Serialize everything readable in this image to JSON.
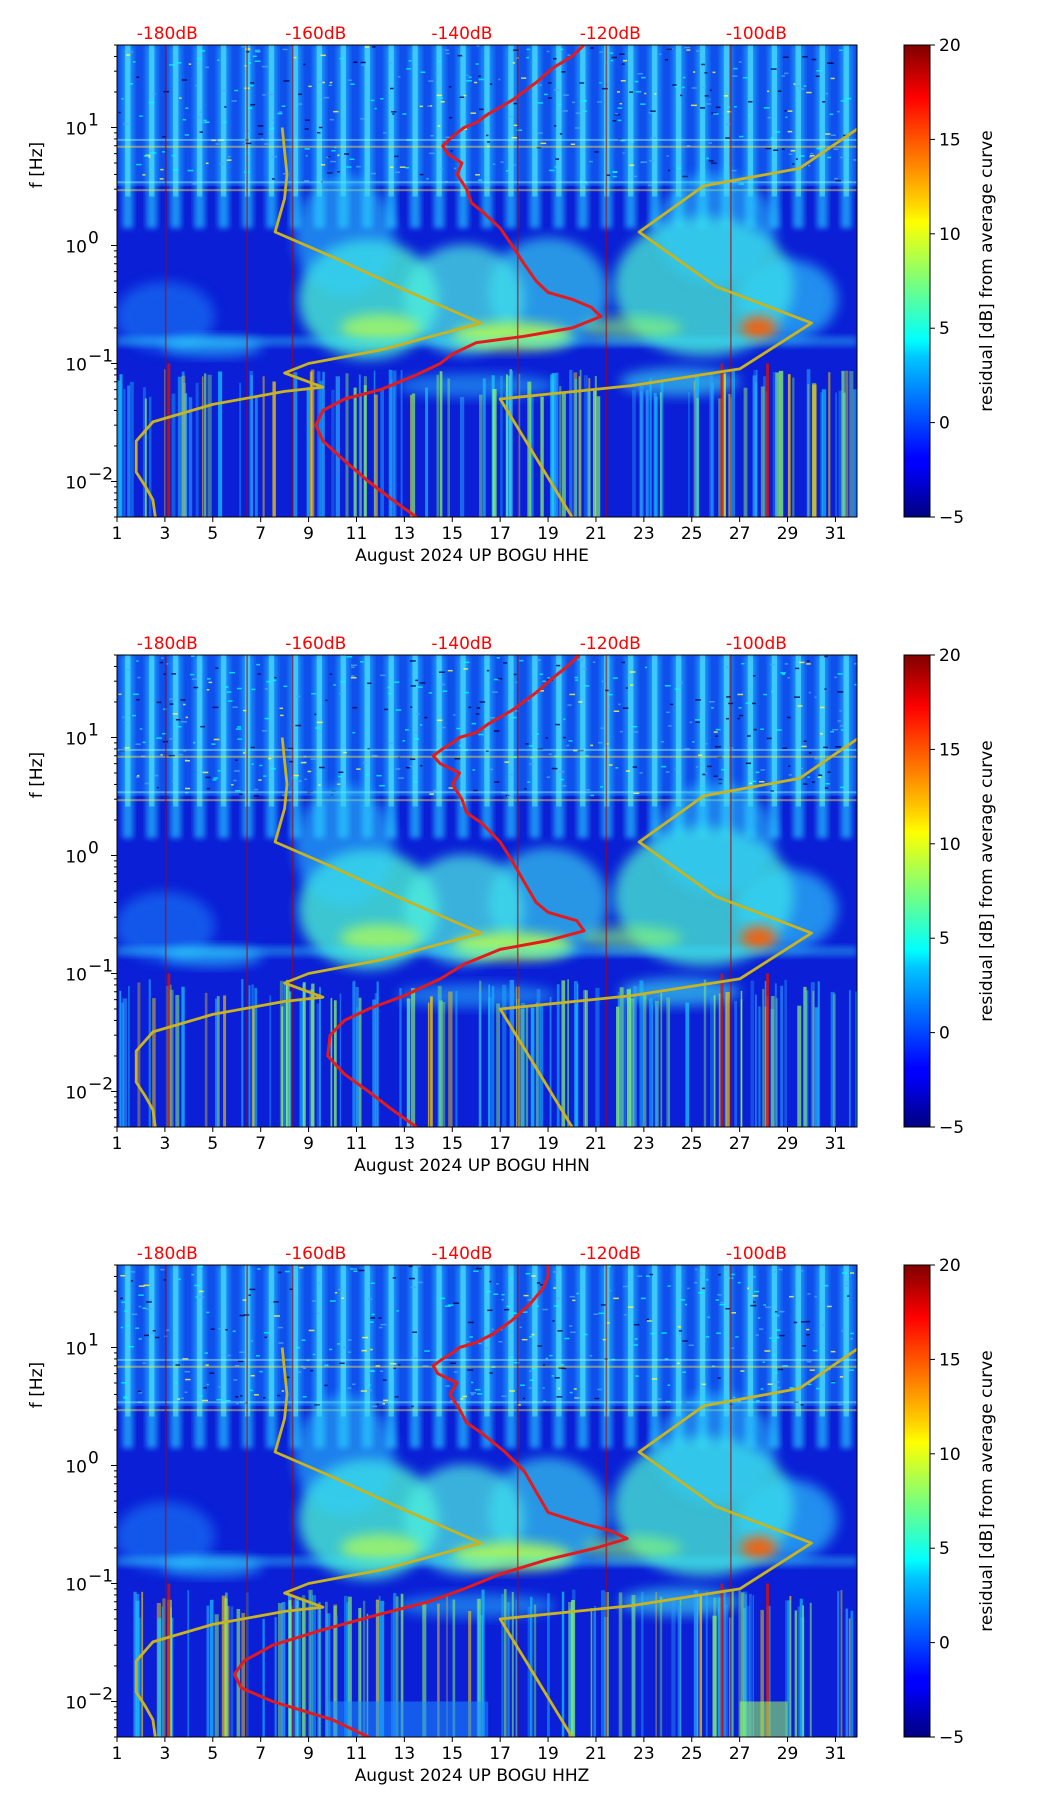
{
  "chart_data": [
    {
      "type": "heatmap",
      "xlabel": "August 2024 UP BOGU  HHE",
      "ylabel": "f [Hz]",
      "xlim": [
        1,
        31.9
      ],
      "ylim": [
        0.005,
        50
      ],
      "yscale": "log",
      "x_ticks": [
        "1",
        "3",
        "5",
        "7",
        "9",
        "11",
        "13",
        "15",
        "17",
        "19",
        "21",
        "23",
        "25",
        "27",
        "29",
        "31"
      ],
      "y_ticks": [
        {
          "value": 0.01,
          "base": "10",
          "exp": "−2"
        },
        {
          "value": 0.1,
          "base": "10",
          "exp": "−1"
        },
        {
          "value": 1,
          "base": "10",
          "exp": "0"
        },
        {
          "value": 10,
          "base": "10",
          "exp": "1"
        }
      ],
      "db_ticks": [
        "-180dB",
        "-160dB",
        "-140dB",
        "-120dB",
        "-100dB"
      ],
      "colorbar": {
        "label": "residual [dB] from average curve",
        "min": -5,
        "max": 20,
        "ticks": [
          "−5",
          "0",
          "5",
          "10",
          "15",
          "20"
        ]
      },
      "series": [
        {
          "color": "#e41a1c",
          "points": [
            [
              13.5,
              0.005
            ],
            [
              12.5,
              0.007
            ],
            [
              11.5,
              0.01
            ],
            [
              10.5,
              0.015
            ],
            [
              9.6,
              0.022
            ],
            [
              9.3,
              0.03
            ],
            [
              9.6,
              0.04
            ],
            [
              10.5,
              0.05
            ],
            [
              12,
              0.06
            ],
            [
              13.5,
              0.08
            ],
            [
              14.5,
              0.1
            ],
            [
              15,
              0.12
            ],
            [
              16,
              0.15
            ],
            [
              18,
              0.17
            ],
            [
              20,
              0.2
            ],
            [
              21.2,
              0.25
            ],
            [
              20.8,
              0.3
            ],
            [
              20,
              0.35
            ],
            [
              19,
              0.4
            ],
            [
              18.5,
              0.5
            ],
            [
              18,
              0.7
            ],
            [
              17.5,
              1
            ],
            [
              17,
              1.4
            ],
            [
              16.3,
              1.9
            ],
            [
              15.8,
              2.3
            ],
            [
              15.6,
              3
            ],
            [
              15.2,
              4
            ],
            [
              15.4,
              5
            ],
            [
              14.8,
              6
            ],
            [
              14.6,
              7
            ],
            [
              14.9,
              8
            ],
            [
              15.2,
              9
            ],
            [
              15.5,
              10
            ],
            [
              16,
              11
            ],
            [
              16.5,
              13
            ],
            [
              17.5,
              17
            ],
            [
              18.5,
              24
            ],
            [
              19.2,
              32
            ],
            [
              20,
              40
            ],
            [
              20.5,
              50
            ]
          ]
        },
        {
          "color": "#c9b31f",
          "points": [
            [
              2.6,
              0.005
            ],
            [
              2.5,
              0.007
            ],
            [
              2.2,
              0.009
            ],
            [
              1.8,
              0.012
            ],
            [
              1.8,
              0.016
            ],
            [
              1.8,
              0.022
            ],
            [
              2.5,
              0.032
            ],
            [
              5,
              0.045
            ],
            [
              8,
              0.058
            ],
            [
              9.6,
              0.063
            ],
            [
              8,
              0.083
            ],
            [
              9,
              0.1
            ],
            [
              12,
              0.13
            ],
            [
              16.2,
              0.22
            ],
            [
              13,
              0.42
            ],
            [
              10,
              0.8
            ],
            [
              7.6,
              1.3
            ],
            [
              8,
              2.5
            ],
            [
              8.1,
              4
            ],
            [
              7.9,
              10
            ]
          ]
        },
        {
          "color": "#c9b31f",
          "points": [
            [
              20,
              0.005
            ],
            [
              18.2,
              0.02
            ],
            [
              17,
              0.05
            ],
            [
              22.5,
              0.065
            ],
            [
              27,
              0.09
            ],
            [
              30,
              0.22
            ],
            [
              26,
              0.45
            ],
            [
              22.8,
              1.3
            ],
            [
              25.5,
              3.2
            ],
            [
              29.5,
              4.5
            ],
            [
              32,
              10
            ]
          ]
        }
      ]
    },
    {
      "type": "heatmap",
      "xlabel": "August 2024 UP BOGU  HHN",
      "ylabel": "f [Hz]",
      "xlim": [
        1,
        31.9
      ],
      "ylim": [
        0.005,
        50
      ],
      "yscale": "log",
      "x_ticks": [
        "1",
        "3",
        "5",
        "7",
        "9",
        "11",
        "13",
        "15",
        "17",
        "19",
        "21",
        "23",
        "25",
        "27",
        "29",
        "31"
      ],
      "y_ticks": [
        {
          "value": 0.01,
          "base": "10",
          "exp": "−2"
        },
        {
          "value": 0.1,
          "base": "10",
          "exp": "−1"
        },
        {
          "value": 1,
          "base": "10",
          "exp": "0"
        },
        {
          "value": 10,
          "base": "10",
          "exp": "1"
        }
      ],
      "db_ticks": [
        "-180dB",
        "-160dB",
        "-140dB",
        "-120dB",
        "-100dB"
      ],
      "colorbar": {
        "label": "residual [dB] from average curve",
        "min": -5,
        "max": 20,
        "ticks": [
          "−5",
          "0",
          "5",
          "10",
          "15",
          "20"
        ]
      },
      "series": [
        {
          "color": "#e41a1c",
          "points": [
            [
              13.5,
              0.005
            ],
            [
              12.5,
              0.007
            ],
            [
              11.5,
              0.01
            ],
            [
              10.5,
              0.014
            ],
            [
              9.8,
              0.02
            ],
            [
              9.9,
              0.03
            ],
            [
              10.5,
              0.04
            ],
            [
              11.5,
              0.05
            ],
            [
              13,
              0.065
            ],
            [
              14.5,
              0.09
            ],
            [
              15.5,
              0.12
            ],
            [
              17,
              0.16
            ],
            [
              19,
              0.19
            ],
            [
              20.5,
              0.23
            ],
            [
              20.2,
              0.28
            ],
            [
              19,
              0.33
            ],
            [
              18.5,
              0.4
            ],
            [
              18,
              0.6
            ],
            [
              17.5,
              0.9
            ],
            [
              17,
              1.3
            ],
            [
              16.2,
              1.9
            ],
            [
              15.6,
              2.3
            ],
            [
              15.4,
              3
            ],
            [
              15,
              4
            ],
            [
              15.3,
              5
            ],
            [
              14.5,
              6
            ],
            [
              14.2,
              7
            ],
            [
              14.6,
              8
            ],
            [
              15,
              9
            ],
            [
              15.3,
              10
            ],
            [
              16,
              11
            ],
            [
              16.5,
              13
            ],
            [
              17.5,
              17
            ],
            [
              18.5,
              24
            ],
            [
              19.2,
              32
            ],
            [
              19.8,
              40
            ],
            [
              20.3,
              50
            ]
          ]
        },
        {
          "color": "#c9b31f",
          "points": [
            [
              2.6,
              0.005
            ],
            [
              2.5,
              0.007
            ],
            [
              2.2,
              0.009
            ],
            [
              1.8,
              0.012
            ],
            [
              1.8,
              0.016
            ],
            [
              1.8,
              0.022
            ],
            [
              2.5,
              0.032
            ],
            [
              5,
              0.045
            ],
            [
              8,
              0.058
            ],
            [
              9.6,
              0.063
            ],
            [
              8,
              0.083
            ],
            [
              9,
              0.1
            ],
            [
              12,
              0.13
            ],
            [
              16.2,
              0.22
            ],
            [
              13,
              0.42
            ],
            [
              10,
              0.8
            ],
            [
              7.6,
              1.3
            ],
            [
              8,
              2.5
            ],
            [
              8.1,
              4
            ],
            [
              7.9,
              10
            ]
          ]
        },
        {
          "color": "#c9b31f",
          "points": [
            [
              20,
              0.005
            ],
            [
              18.2,
              0.02
            ],
            [
              17,
              0.05
            ],
            [
              22.5,
              0.065
            ],
            [
              27,
              0.09
            ],
            [
              30,
              0.22
            ],
            [
              26,
              0.45
            ],
            [
              22.8,
              1.3
            ],
            [
              25.5,
              3.2
            ],
            [
              29.5,
              4.5
            ],
            [
              32,
              10
            ]
          ]
        }
      ]
    },
    {
      "type": "heatmap",
      "xlabel": "August 2024 UP BOGU  HHZ",
      "ylabel": "f [Hz]",
      "xlim": [
        1,
        31.9
      ],
      "ylim": [
        0.005,
        50
      ],
      "yscale": "log",
      "x_ticks": [
        "1",
        "3",
        "5",
        "7",
        "9",
        "11",
        "13",
        "15",
        "17",
        "19",
        "21",
        "23",
        "25",
        "27",
        "29",
        "31"
      ],
      "y_ticks": [
        {
          "value": 0.01,
          "base": "10",
          "exp": "−2"
        },
        {
          "value": 0.1,
          "base": "10",
          "exp": "−1"
        },
        {
          "value": 1,
          "base": "10",
          "exp": "0"
        },
        {
          "value": 10,
          "base": "10",
          "exp": "1"
        }
      ],
      "db_ticks": [
        "-180dB",
        "-160dB",
        "-140dB",
        "-120dB",
        "-100dB"
      ],
      "colorbar": {
        "label": "residual [dB] from average curve",
        "min": -5,
        "max": 20,
        "ticks": [
          "−5",
          "0",
          "5",
          "10",
          "15",
          "20"
        ]
      },
      "series": [
        {
          "color": "#e41a1c",
          "points": [
            [
              11.5,
              0.005
            ],
            [
              10,
              0.007
            ],
            [
              7.5,
              0.01
            ],
            [
              6.2,
              0.013
            ],
            [
              5.9,
              0.017
            ],
            [
              6.3,
              0.022
            ],
            [
              7.5,
              0.03
            ],
            [
              9.5,
              0.04
            ],
            [
              12,
              0.055
            ],
            [
              14,
              0.07
            ],
            [
              15.5,
              0.09
            ],
            [
              17,
              0.12
            ],
            [
              19,
              0.16
            ],
            [
              21,
              0.2
            ],
            [
              22.3,
              0.24
            ],
            [
              21.6,
              0.28
            ],
            [
              20.5,
              0.32
            ],
            [
              19,
              0.4
            ],
            [
              18.5,
              0.6
            ],
            [
              18,
              0.9
            ],
            [
              17.2,
              1.3
            ],
            [
              16.2,
              1.9
            ],
            [
              15.6,
              2.3
            ],
            [
              15.3,
              3
            ],
            [
              14.9,
              4
            ],
            [
              15.2,
              5
            ],
            [
              14.4,
              6
            ],
            [
              14.2,
              7
            ],
            [
              14.6,
              8
            ],
            [
              15,
              9
            ],
            [
              15.3,
              10
            ],
            [
              16,
              11
            ],
            [
              16.7,
              13
            ],
            [
              17.5,
              17
            ],
            [
              18.3,
              24
            ],
            [
              18.8,
              32
            ],
            [
              19,
              40
            ],
            [
              19,
              50
            ]
          ]
        },
        {
          "color": "#c9b31f",
          "points": [
            [
              2.6,
              0.005
            ],
            [
              2.5,
              0.007
            ],
            [
              2.2,
              0.009
            ],
            [
              1.8,
              0.012
            ],
            [
              1.8,
              0.016
            ],
            [
              1.8,
              0.022
            ],
            [
              2.5,
              0.032
            ],
            [
              5,
              0.045
            ],
            [
              8,
              0.058
            ],
            [
              9.6,
              0.063
            ],
            [
              8,
              0.083
            ],
            [
              9,
              0.1
            ],
            [
              12,
              0.13
            ],
            [
              16.2,
              0.22
            ],
            [
              13,
              0.42
            ],
            [
              10,
              0.8
            ],
            [
              7.6,
              1.3
            ],
            [
              8,
              2.5
            ],
            [
              8.1,
              4
            ],
            [
              7.9,
              10
            ]
          ]
        },
        {
          "color": "#c9b31f",
          "points": [
            [
              20,
              0.005
            ],
            [
              18.2,
              0.02
            ],
            [
              17,
              0.05
            ],
            [
              22.5,
              0.065
            ],
            [
              27,
              0.09
            ],
            [
              30,
              0.22
            ],
            [
              26,
              0.45
            ],
            [
              22.8,
              1.3
            ],
            [
              25.5,
              3.2
            ],
            [
              29.5,
              4.5
            ],
            [
              32,
              10
            ]
          ]
        }
      ]
    }
  ]
}
